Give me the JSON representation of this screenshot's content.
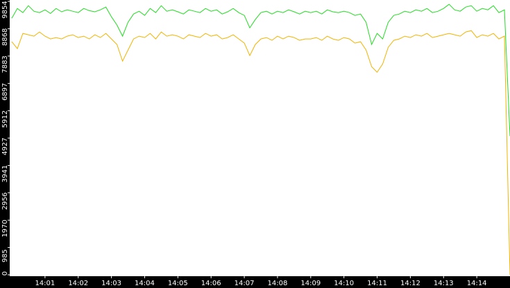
{
  "chart_data": {
    "type": "line",
    "x": [
      "14:00:00",
      "14:00:10",
      "14:00:20",
      "14:00:30",
      "14:00:40",
      "14:00:50",
      "14:01:00",
      "14:01:10",
      "14:01:20",
      "14:01:30",
      "14:01:40",
      "14:01:50",
      "14:02:00",
      "14:02:10",
      "14:02:20",
      "14:02:30",
      "14:02:40",
      "14:02:50",
      "14:03:00",
      "14:03:10",
      "14:03:20",
      "14:03:30",
      "14:03:40",
      "14:03:50",
      "14:04:00",
      "14:04:10",
      "14:04:20",
      "14:04:30",
      "14:04:40",
      "14:04:50",
      "14:05:00",
      "14:05:10",
      "14:05:20",
      "14:05:30",
      "14:05:40",
      "14:05:50",
      "14:06:00",
      "14:06:10",
      "14:06:20",
      "14:06:30",
      "14:06:40",
      "14:06:50",
      "14:07:00",
      "14:07:10",
      "14:07:20",
      "14:07:30",
      "14:07:40",
      "14:07:50",
      "14:08:00",
      "14:08:10",
      "14:08:20",
      "14:08:30",
      "14:08:40",
      "14:08:50",
      "14:09:00",
      "14:09:10",
      "14:09:20",
      "14:09:30",
      "14:09:40",
      "14:09:50",
      "14:10:00",
      "14:10:10",
      "14:10:20",
      "14:10:30",
      "14:10:40",
      "14:10:50",
      "14:11:00",
      "14:11:10",
      "14:11:20",
      "14:11:30",
      "14:11:40",
      "14:11:50",
      "14:12:00",
      "14:12:10",
      "14:12:20",
      "14:12:30",
      "14:12:40",
      "14:12:50",
      "14:13:00",
      "14:13:10",
      "14:13:20",
      "14:13:30",
      "14:13:40",
      "14:13:50",
      "14:14:00",
      "14:14:10",
      "14:14:20",
      "14:14:30",
      "14:14:40",
      "14:14:50",
      "14:15:00"
    ],
    "series": [
      {
        "color": "#22dd22",
        "values": [
          9250,
          9600,
          9450,
          9700,
          9500,
          9450,
          9550,
          9420,
          9600,
          9480,
          9550,
          9500,
          9450,
          9600,
          9520,
          9480,
          9550,
          9650,
          9300,
          9000,
          8600,
          9100,
          9400,
          9500,
          9350,
          9600,
          9450,
          9700,
          9500,
          9550,
          9480,
          9400,
          9550,
          9500,
          9450,
          9600,
          9500,
          9550,
          9400,
          9480,
          9600,
          9450,
          9350,
          8900,
          9200,
          9450,
          9500,
          9400,
          9500,
          9450,
          9550,
          9480,
          9400,
          9500,
          9450,
          9500,
          9400,
          9550,
          9480,
          9450,
          9500,
          9450,
          9350,
          9400,
          9100,
          8300,
          8700,
          8500,
          9100,
          9350,
          9400,
          9500,
          9450,
          9550,
          9500,
          9600,
          9450,
          9500,
          9600,
          9750,
          9550,
          9500,
          9650,
          9700,
          9500,
          9600,
          9550,
          9700,
          9450,
          9550,
          5000
        ]
      },
      {
        "color": "#f0b400",
        "values": [
          8400,
          8150,
          8700,
          8650,
          8600,
          8750,
          8600,
          8500,
          8550,
          8500,
          8600,
          8650,
          8550,
          8600,
          8500,
          8650,
          8550,
          8700,
          8500,
          8300,
          7700,
          8100,
          8500,
          8600,
          8550,
          8700,
          8500,
          8750,
          8600,
          8650,
          8600,
          8500,
          8650,
          8600,
          8550,
          8700,
          8600,
          8650,
          8500,
          8550,
          8650,
          8500,
          8350,
          7900,
          8300,
          8500,
          8550,
          8450,
          8600,
          8500,
          8600,
          8550,
          8450,
          8500,
          8500,
          8550,
          8450,
          8600,
          8500,
          8450,
          8550,
          8500,
          8350,
          8400,
          8100,
          7500,
          7300,
          7600,
          8200,
          8450,
          8500,
          8600,
          8550,
          8650,
          8600,
          8700,
          8550,
          8600,
          8650,
          8700,
          8650,
          8600,
          8750,
          8800,
          8550,
          8650,
          8600,
          8700,
          8500,
          8600,
          0
        ]
      }
    ],
    "xlim": [
      "14:00:00",
      "14:15:00"
    ],
    "xticks": [
      "14:01",
      "14:02",
      "14:03",
      "14:04",
      "14:05",
      "14:06",
      "14:07",
      "14:08",
      "14:09",
      "14:10",
      "14:11",
      "14:12",
      "14:13",
      "14:14"
    ],
    "ylim": [
      0,
      9854
    ],
    "yticks": [
      0,
      985,
      1970,
      2956,
      3941,
      4927,
      5912,
      6897,
      7883,
      8868,
      9854
    ]
  }
}
